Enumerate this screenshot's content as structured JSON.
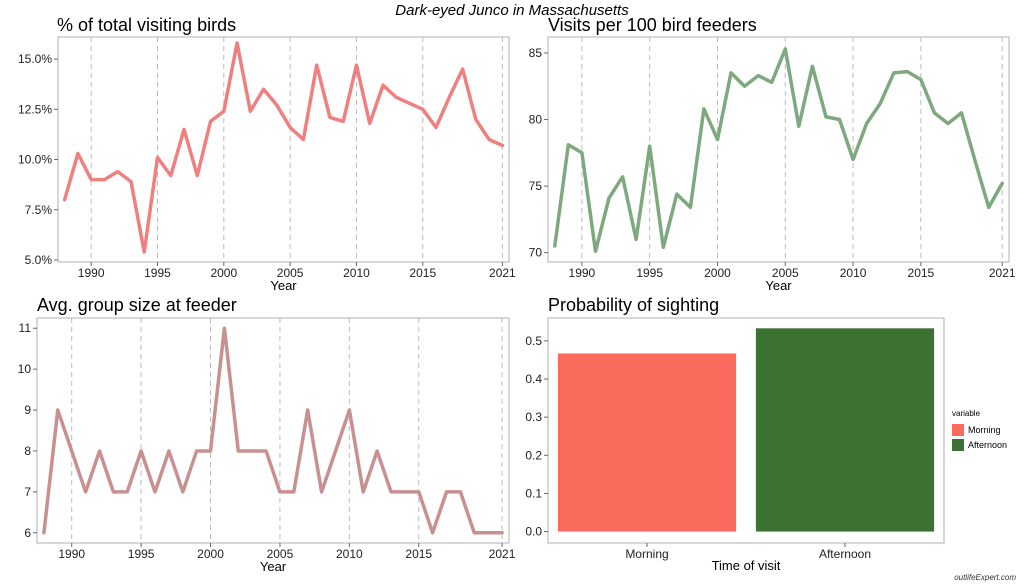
{
  "title": "Dark-eyed Junco in Massachusetts",
  "watermark": "outlifeExpert.com",
  "colors": {
    "pct": "#f08080",
    "visits": "#7ea87e",
    "group": "#c89090",
    "morning": "#fa6b5e",
    "afternoon": "#3b7232",
    "grid": "#bbbbbb"
  },
  "chart_data": [
    {
      "id": "pct",
      "type": "line",
      "title": "% of total visiting birds",
      "xlabel": "Year",
      "ylabel": "",
      "xlim": [
        1987.5,
        2021.5
      ],
      "ylim": [
        4.9,
        16.1
      ],
      "x_ticks": [
        1990,
        1995,
        2000,
        2005,
        2010,
        2015,
        2021
      ],
      "x_tick_labels": [
        "1990",
        "1995",
        "2000",
        "2005",
        "2010",
        "2015",
        "2021"
      ],
      "y_ticks": [
        5,
        7.5,
        10,
        12.5,
        15
      ],
      "y_tick_labels": [
        "5.0%",
        "7.5%",
        "10.0%",
        "12.5%",
        "15.0%"
      ],
      "grid": "vertical dashed",
      "x": [
        1988,
        1989,
        1990,
        1991,
        1992,
        1993,
        1994,
        1995,
        1996,
        1997,
        1998,
        1999,
        2000,
        2001,
        2002,
        2003,
        2004,
        2005,
        2006,
        2007,
        2008,
        2009,
        2010,
        2011,
        2012,
        2013,
        2014,
        2015,
        2016,
        2017,
        2018,
        2019,
        2020,
        2021
      ],
      "y": [
        8.0,
        10.3,
        9.0,
        9.0,
        9.4,
        8.9,
        5.4,
        10.1,
        9.2,
        11.5,
        9.2,
        11.9,
        12.4,
        15.8,
        12.4,
        13.5,
        12.7,
        11.6,
        11.0,
        14.7,
        12.1,
        11.9,
        14.7,
        11.8,
        13.7,
        13.1,
        12.8,
        12.5,
        11.6,
        13.1,
        14.5,
        12.0,
        11.0,
        10.7
      ]
    },
    {
      "id": "visits",
      "type": "line",
      "title": "Visits per 100 bird feeders",
      "xlabel": "Year",
      "ylabel": "",
      "xlim": [
        1987.5,
        2021.5
      ],
      "ylim": [
        69.3,
        86.2
      ],
      "x_ticks": [
        1990,
        1995,
        2000,
        2005,
        2010,
        2015,
        2021
      ],
      "x_tick_labels": [
        "1990",
        "1995",
        "2000",
        "2005",
        "2010",
        "2015",
        "2021"
      ],
      "y_ticks": [
        70,
        75,
        80,
        85
      ],
      "y_tick_labels": [
        "70",
        "75",
        "80",
        "85"
      ],
      "grid": "vertical dashed",
      "x": [
        1988,
        1989,
        1990,
        1991,
        1992,
        1993,
        1994,
        1995,
        1996,
        1997,
        1998,
        1999,
        2000,
        2001,
        2002,
        2003,
        2004,
        2005,
        2006,
        2007,
        2008,
        2009,
        2010,
        2011,
        2012,
        2013,
        2014,
        2015,
        2016,
        2017,
        2018,
        2019,
        2020,
        2021
      ],
      "y": [
        70.5,
        78.1,
        77.5,
        70.1,
        74.1,
        75.7,
        71.0,
        78.0,
        70.4,
        74.4,
        73.4,
        80.8,
        78.5,
        83.5,
        82.5,
        83.3,
        82.8,
        85.3,
        79.5,
        84.0,
        80.2,
        80.0,
        77.0,
        79.7,
        81.2,
        83.5,
        83.6,
        83.0,
        80.5,
        79.7,
        80.5,
        76.9,
        73.4,
        75.2
      ]
    },
    {
      "id": "group",
      "type": "line",
      "title": "Avg. group size at feeder",
      "xlabel": "Year",
      "ylabel": "",
      "xlim": [
        1987.5,
        2021.5
      ],
      "ylim": [
        5.75,
        11.25
      ],
      "x_ticks": [
        1990,
        1995,
        2000,
        2005,
        2010,
        2015,
        2021
      ],
      "x_tick_labels": [
        "1990",
        "1995",
        "2000",
        "2005",
        "2010",
        "2015",
        "2021"
      ],
      "y_ticks": [
        6,
        7,
        8,
        9,
        10,
        11
      ],
      "y_tick_labels": [
        "6",
        "7",
        "8",
        "9",
        "10",
        "11"
      ],
      "grid": "vertical dashed",
      "x": [
        1988,
        1989,
        1990,
        1991,
        1992,
        1993,
        1994,
        1995,
        1996,
        1997,
        1998,
        1999,
        2000,
        2001,
        2002,
        2003,
        2004,
        2005,
        2006,
        2007,
        2008,
        2009,
        2010,
        2011,
        2012,
        2013,
        2014,
        2015,
        2016,
        2017,
        2018,
        2019,
        2020,
        2021
      ],
      "y": [
        6,
        9,
        8,
        7,
        8,
        7,
        7,
        8,
        7,
        8,
        7,
        8,
        8,
        11,
        8,
        8,
        8,
        7,
        7,
        9,
        7,
        8,
        9,
        7,
        8,
        7,
        7,
        7,
        6,
        7,
        7,
        6,
        6,
        6
      ]
    },
    {
      "id": "prob",
      "type": "bar",
      "title": "Probability of sighting",
      "xlabel": "Time of visit",
      "ylabel": "",
      "categories": [
        "Morning",
        "Afternoon"
      ],
      "values": [
        0.467,
        0.533
      ],
      "ylim": [
        -0.03,
        0.56
      ],
      "y_ticks": [
        0,
        0.1,
        0.2,
        0.3,
        0.4,
        0.5
      ],
      "y_tick_labels": [
        "0.0",
        "0.1",
        "0.2",
        "0.3",
        "0.4",
        "0.5"
      ],
      "legend": {
        "title": "variable",
        "position": "right",
        "items": [
          "Morning",
          "Afternoon"
        ]
      }
    }
  ]
}
